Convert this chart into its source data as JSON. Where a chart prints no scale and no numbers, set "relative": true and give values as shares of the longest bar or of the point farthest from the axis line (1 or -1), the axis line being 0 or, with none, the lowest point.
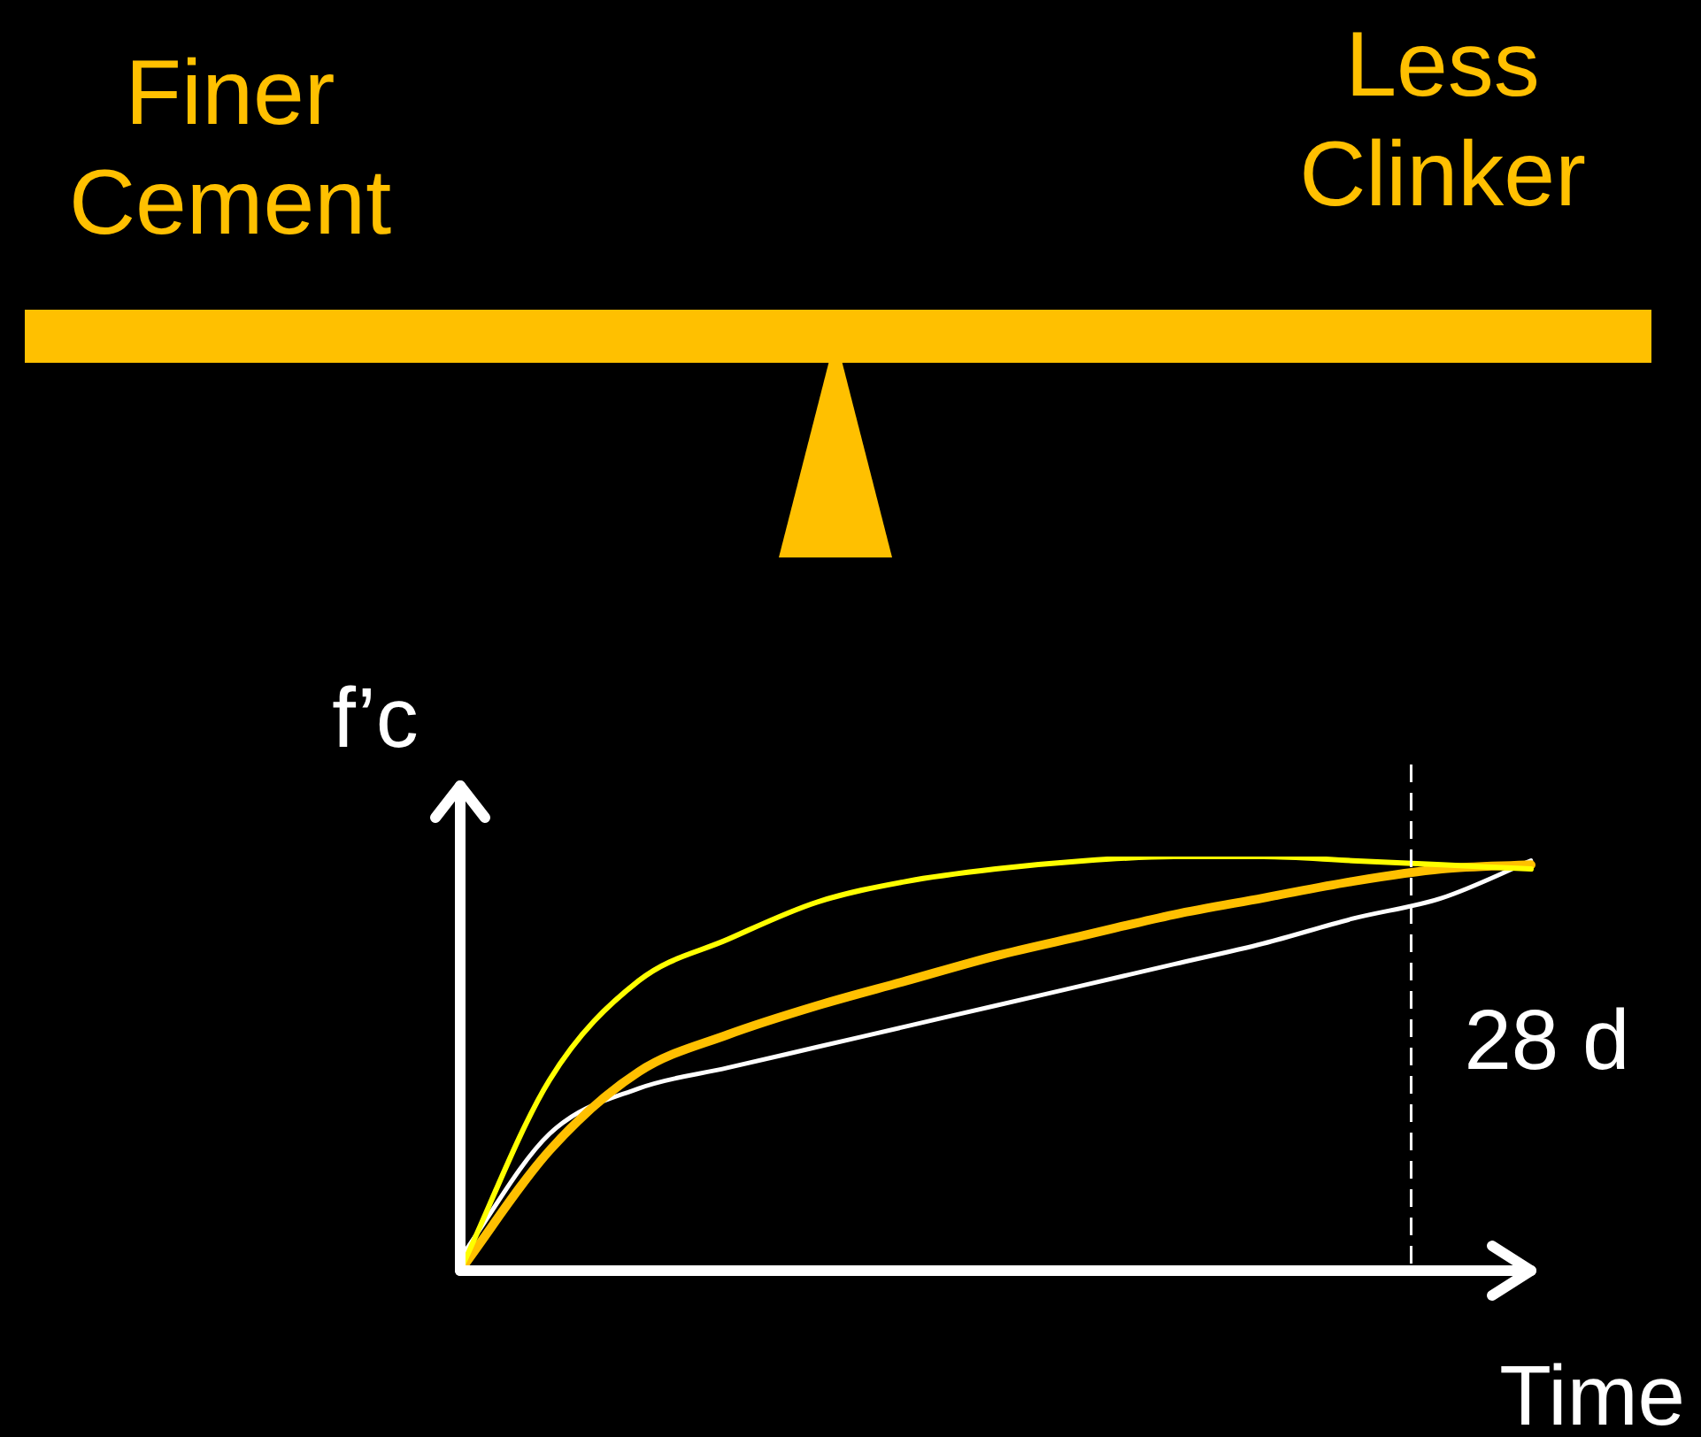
{
  "chart_data": {
    "type": "line",
    "relative": true,
    "xlabel": "Time",
    "ylabel": "f’c",
    "legend": false,
    "marker": "none",
    "categories": [
      null,
      null,
      null,
      null,
      null,
      null,
      null,
      null,
      null,
      null,
      null,
      null,
      null
    ],
    "series": [
      {
        "color": "#ffff00",
        "values": [
          0,
          0.46,
          0.7,
          0.8,
          0.89,
          0.94,
          0.97,
          0.99,
          1.0,
          1.0,
          0.99,
          0.98,
          0.97
        ]
      },
      {
        "color": "#ffc000",
        "values": [
          0,
          0.29,
          0.48,
          0.57,
          0.64,
          0.7,
          0.76,
          0.81,
          0.86,
          0.9,
          0.94,
          0.97,
          0.98
        ]
      },
      {
        "color": "#ffffff",
        "values": [
          0.03,
          0.33,
          0.44,
          0.49,
          0.54,
          0.59,
          0.64,
          0.69,
          0.74,
          0.79,
          0.85,
          0.9,
          0.99
        ]
      }
    ],
    "annotations": [
      "Finer Cement",
      "Less Clinker",
      "28 d"
    ]
  }
}
